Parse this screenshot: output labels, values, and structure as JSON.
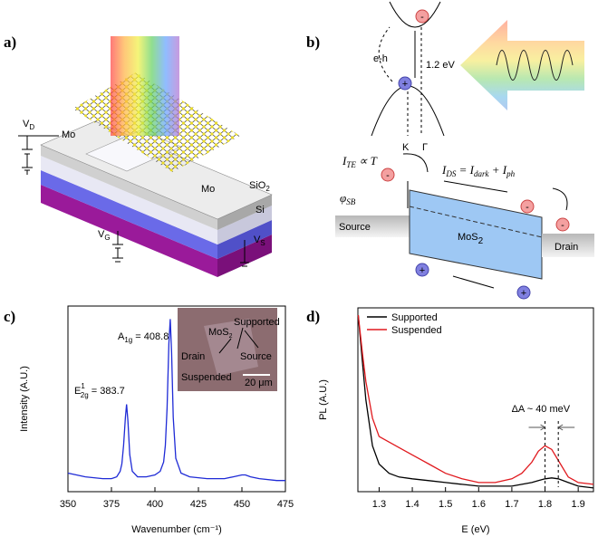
{
  "panel_labels": [
    "a)",
    "b)",
    "c)",
    "d)"
  ],
  "device": {
    "vd": {
      "base": "V",
      "sub": "D"
    },
    "vg": {
      "base": "V",
      "sub": "G"
    },
    "vs": {
      "base": "V",
      "sub": "S"
    },
    "mo_left": "Mo",
    "mo_right": "Mo",
    "sio2": {
      "base": "SiO",
      "sub": "2"
    },
    "si": "Si"
  },
  "band": {
    "eh": "e-h",
    "gap": "1.2 eV",
    "k": "K",
    "gamma": "Γ",
    "ite": {
      "base": "I",
      "sub": "TE",
      "rest": " ∝ T"
    },
    "ids": {
      "i1": "I",
      "s1": "DS",
      "m1": " = ",
      "i2": "I",
      "s2": "dark",
      "m2": " + ",
      "i3": "I",
      "s3": "ph"
    },
    "phi": {
      "base": "φ",
      "sub": "SB"
    },
    "source": "Source",
    "drain": "Drain",
    "mos2": {
      "base": "MoS",
      "sub": "2"
    },
    "minus": "-",
    "plus": "+"
  },
  "inset": {
    "supported": "Supported",
    "mos2": {
      "base": "MoS",
      "sub": "2"
    },
    "drain": "Drain",
    "source": "Source",
    "suspended": "Suspended",
    "scale": "20 μm"
  },
  "chart_data": [
    {
      "type": "line",
      "xlabel": "Wavenumber (cm⁻¹)",
      "ylabel": "Intensity (A.U.)",
      "x": [
        350,
        360,
        370,
        375,
        378,
        380,
        381,
        382,
        383,
        383.7,
        384.5,
        385.5,
        387,
        390,
        395,
        400,
        403,
        405,
        406,
        407,
        408,
        408.8,
        409.6,
        410.5,
        412,
        415,
        420,
        430,
        440,
        445,
        450,
        452,
        455,
        460,
        470,
        475
      ],
      "values": [
        0.1,
        0.08,
        0.07,
        0.07,
        0.08,
        0.11,
        0.15,
        0.25,
        0.4,
        0.47,
        0.38,
        0.2,
        0.11,
        0.08,
        0.08,
        0.09,
        0.11,
        0.16,
        0.25,
        0.45,
        0.8,
        0.93,
        0.75,
        0.4,
        0.18,
        0.1,
        0.08,
        0.07,
        0.07,
        0.08,
        0.09,
        0.09,
        0.08,
        0.07,
        0.06,
        0.06
      ],
      "color": "#1f2bd6",
      "xlim": [
        350,
        475
      ],
      "xticks": [
        350,
        375,
        400,
        425,
        450,
        475
      ],
      "ylim": [
        0,
        1
      ],
      "annotations": [
        {
          "base": "A",
          "sub": "1g",
          "rest": " = 408.8"
        },
        {
          "base": "E",
          "sup": "1",
          "sub": "2g",
          "rest": " = 383.7"
        }
      ]
    },
    {
      "type": "line",
      "xlabel": "E (eV)",
      "ylabel": "PL (A.U.)",
      "x": [
        1.237,
        1.25,
        1.26,
        1.28,
        1.3,
        1.33,
        1.36,
        1.4,
        1.45,
        1.5,
        1.55,
        1.6,
        1.65,
        1.7,
        1.73,
        1.76,
        1.78,
        1.8,
        1.82,
        1.84,
        1.87,
        1.9,
        1.946
      ],
      "series": [
        {
          "name": "Supported",
          "color": "#000000",
          "values": [
            0.96,
            0.7,
            0.5,
            0.25,
            0.15,
            0.1,
            0.08,
            0.07,
            0.06,
            0.05,
            0.04,
            0.03,
            0.03,
            0.03,
            0.04,
            0.05,
            0.06,
            0.07,
            0.075,
            0.07,
            0.05,
            0.03,
            0.02
          ]
        },
        {
          "name": "Suspended",
          "color": "#e0191e",
          "values": [
            0.96,
            0.75,
            0.6,
            0.4,
            0.3,
            0.27,
            0.24,
            0.2,
            0.15,
            0.1,
            0.07,
            0.05,
            0.05,
            0.07,
            0.1,
            0.16,
            0.22,
            0.25,
            0.23,
            0.17,
            0.08,
            0.05,
            0.04
          ]
        }
      ],
      "xlim": [
        1.236,
        1.946
      ],
      "xticks": [
        1.3,
        1.4,
        1.5,
        1.6,
        1.7,
        1.8,
        1.9
      ],
      "ylim": [
        0,
        1
      ],
      "legend": "upper left",
      "shift": {
        "text": "ΔA ~ 40 meV",
        "x": [
          1.8,
          1.84
        ]
      }
    }
  ]
}
